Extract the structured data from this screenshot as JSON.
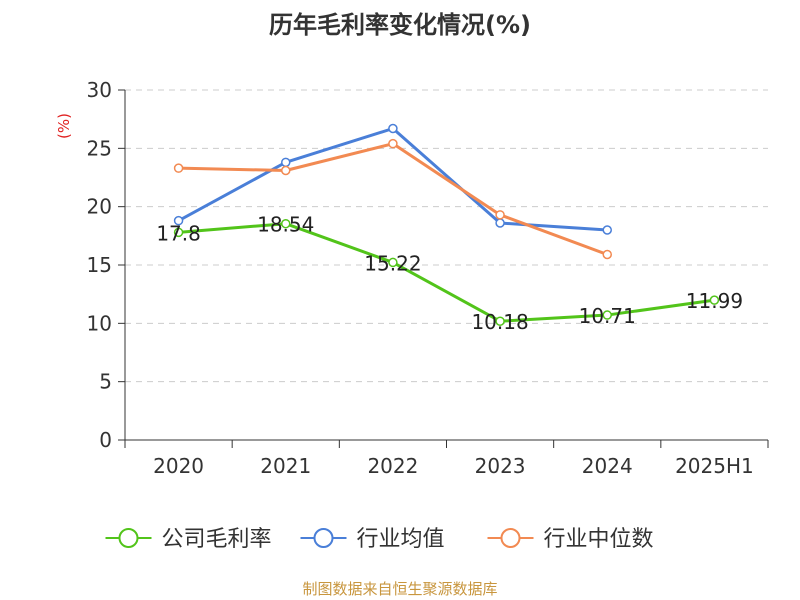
{
  "chart_data": {
    "type": "line",
    "title": "历年毛利率变化情况(%)",
    "ylabel": "(%)",
    "xlabel": "",
    "categories": [
      "2020",
      "2021",
      "2022",
      "2023",
      "2024",
      "2025H1"
    ],
    "ylim": [
      0,
      30
    ],
    "yticks": [
      0,
      5,
      10,
      15,
      20,
      25,
      30
    ],
    "grid": true,
    "legend_position": "bottom",
    "series": [
      {
        "name": "公司毛利率",
        "color": "#52c41a",
        "values": [
          17.8,
          18.54,
          15.22,
          10.18,
          10.71,
          11.99
        ],
        "labels": [
          "17.8",
          "18.54",
          "15.22",
          "10.18",
          "10.71",
          "11.99"
        ]
      },
      {
        "name": "行业均值",
        "color": "#4a7fd8",
        "values": [
          18.8,
          23.8,
          26.7,
          18.6,
          18.0,
          null
        ]
      },
      {
        "name": "行业中位数",
        "color": "#f28a52",
        "values": [
          23.3,
          23.1,
          25.4,
          19.3,
          15.9,
          null
        ]
      }
    ],
    "source": "制图数据来自恒生聚源数据库"
  }
}
